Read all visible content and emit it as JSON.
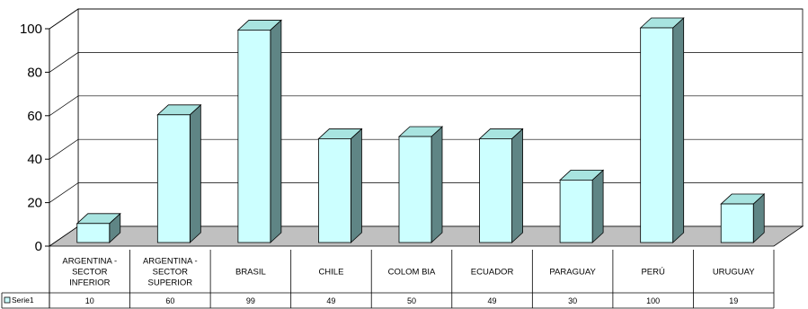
{
  "chart_data": {
    "type": "bar",
    "title": "",
    "xlabel": "",
    "ylabel": "",
    "ylim": [
      0,
      100
    ],
    "yticks": [
      0,
      20,
      40,
      60,
      80,
      100
    ],
    "grid": true,
    "legend": "data-table-left",
    "three_d": true,
    "categories": [
      [
        "ARGENTINA -",
        "SECTOR",
        "INFERIOR"
      ],
      [
        "ARGENTINA -",
        "SECTOR",
        "SUPERIOR"
      ],
      [
        "BRASIL"
      ],
      [
        "CHILE"
      ],
      [
        "COLOM BIA"
      ],
      [
        "ECUADOR"
      ],
      [
        "PARAGUAY"
      ],
      [
        "PERÚ"
      ],
      [
        "URUGUAY"
      ]
    ],
    "series": [
      {
        "name": "Serie1",
        "values": [
          10,
          60,
          99,
          49,
          50,
          49,
          30,
          100,
          19
        ],
        "value_labels": [
          "10",
          "60",
          "99",
          "49",
          "50",
          "49",
          "30",
          "100",
          "19"
        ]
      }
    ],
    "colors": {
      "bar_front": "#ccffff",
      "bar_top": "#a8e4e0",
      "bar_side": "#5f8585",
      "floor": "#c0c0c0",
      "grid": "#000000"
    }
  }
}
